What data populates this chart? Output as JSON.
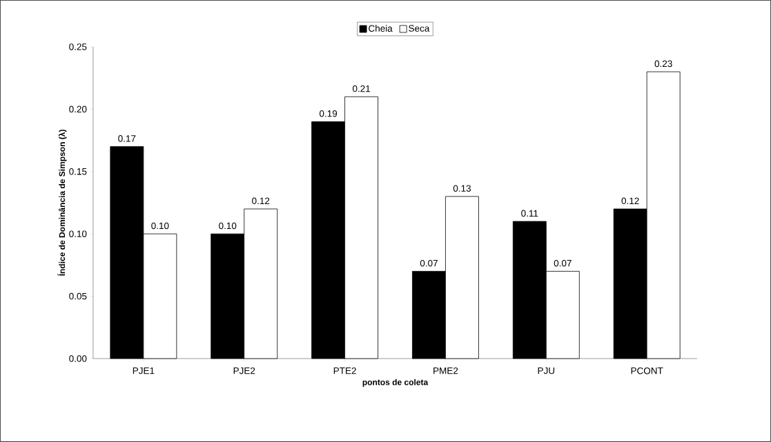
{
  "chart_data": {
    "type": "bar",
    "xlabel": "pontos de coleta",
    "ylabel": "Índice de Dominância de Simpson (λ)",
    "categories": [
      "PJE1",
      "PJE2",
      "PTE2",
      "PME2",
      "PJU",
      "PCONT"
    ],
    "series": [
      {
        "name": "Cheia",
        "color": "#000000",
        "values": [
          0.17,
          0.1,
          0.19,
          0.07,
          0.11,
          0.12
        ],
        "value_labels": [
          "0.17",
          "0.10",
          "0.19",
          "0.07",
          "0.11",
          "0.12"
        ]
      },
      {
        "name": "Seca",
        "color": "#ffffff",
        "values": [
          0.1,
          0.12,
          0.21,
          0.13,
          0.07,
          0.23
        ],
        "value_labels": [
          "0.10",
          "0.12",
          "0.21",
          "0.13",
          "0.07",
          "0.23"
        ]
      }
    ],
    "ylim": [
      0,
      0.25
    ],
    "yticks": [
      {
        "value": 0,
        "label": "0.00"
      },
      {
        "value": 0.05,
        "label": "0.05"
      },
      {
        "value": 0.1,
        "label": "0.10"
      },
      {
        "value": 0.15,
        "label": "0.15"
      },
      {
        "value": 0.2,
        "label": "0.20"
      },
      {
        "value": 0.25,
        "label": "0.25"
      }
    ],
    "legend": "top"
  }
}
